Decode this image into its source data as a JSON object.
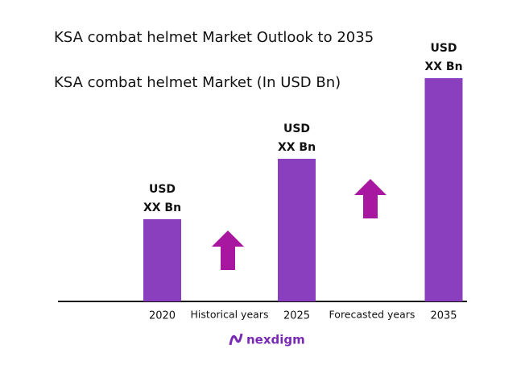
{
  "chart_data": {
    "type": "bar",
    "title": "KSA combat helmet Market Outlook to 2035",
    "subtitle": "KSA combat helmet Market (In USD Bn)",
    "categories": [
      "2020",
      "2025",
      "2035"
    ],
    "values": [
      102,
      177,
      277
    ],
    "value_labels": [
      [
        "USD",
        "XX Bn"
      ],
      [
        "USD",
        "XX Bn"
      ],
      [
        "USD",
        "XX Bn"
      ]
    ],
    "color": "#8a3fbf",
    "ylim": [
      0,
      300
    ],
    "annotations": [
      "Historical years",
      "Forecasted years"
    ],
    "logo": "nexdigm"
  }
}
